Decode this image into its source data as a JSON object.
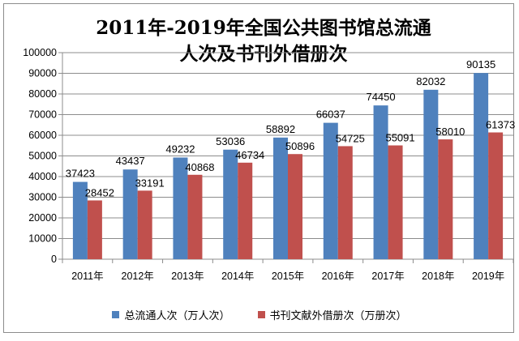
{
  "chart_data": {
    "type": "bar",
    "title_lines": [
      "2011年-2019年全国公共图书馆总流通",
      "人次及书刊外借册次"
    ],
    "categories": [
      "2011年",
      "2012年",
      "2013年",
      "2014年",
      "2015年",
      "2016年",
      "2017年",
      "2018年",
      "2019年"
    ],
    "series": [
      {
        "name": "总流通人次（万人次）",
        "color": "#4f81bd",
        "values": [
          37423,
          43437,
          49232,
          53036,
          58892,
          66037,
          74450,
          82032,
          90135
        ],
        "value_labels": [
          "37423",
          "43437",
          "49232",
          "53036",
          "58892",
          "66037",
          "74450",
          "82032",
          "90135"
        ]
      },
      {
        "name": "书刊文献外借册次（万册次）",
        "color": "#c0504d",
        "values": [
          28452,
          33191,
          40868,
          46734,
          50896,
          54725,
          55091,
          58010,
          61373
        ],
        "value_labels": [
          "28452",
          "33191",
          "40868",
          "46734",
          "50896",
          "54725",
          "55091",
          "58010",
          "61373"
        ]
      }
    ],
    "ylim": [
      0,
      100000
    ],
    "y_ticks": [
      "0",
      "10000",
      "20000",
      "30000",
      "40000",
      "50000",
      "60000",
      "70000",
      "80000",
      "90000",
      "100000"
    ],
    "grid": true,
    "legend_position": "bottom"
  }
}
